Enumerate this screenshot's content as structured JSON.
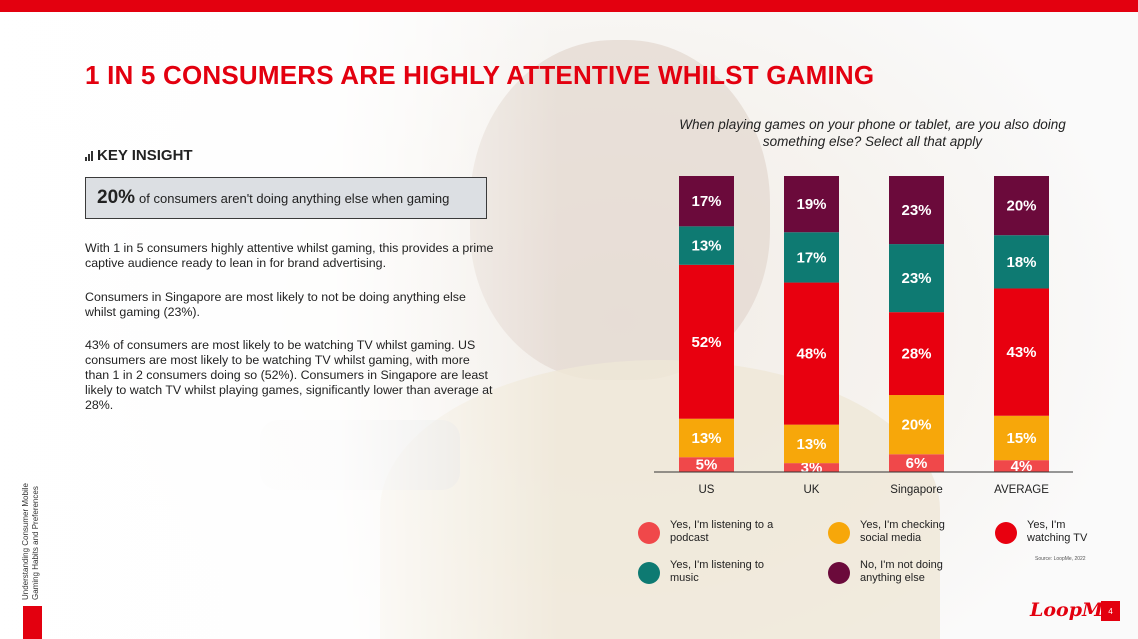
{
  "header": {
    "title": "1 IN 5 CONSUMERS ARE HIGHLY ATTENTIVE WHILST GAMING"
  },
  "key_insight": {
    "label": "KEY INSIGHT",
    "highlight_value": "20%",
    "highlight_text": "of consumers aren't doing anything else when gaming"
  },
  "paragraphs": [
    "With 1 in 5 consumers highly attentive whilst gaming, this provides a prime captive audience ready to lean in for brand advertising.",
    "Consumers in Singapore are most likely to not be doing anything else whilst gaming (23%).",
    "43% of consumers are most likely to be watching TV whilst gaming. US consumers are most likely to be watching TV whilst gaming, with more than 1 in 2 consumers doing so (52%). Consumers in Singapore are least likely to watch TV whilst playing games, significantly lower than average at 28%."
  ],
  "chart_data": {
    "type": "bar",
    "stacked": true,
    "title": "When playing games on your phone or tablet, are you also doing something else? Select all that apply",
    "categories": [
      "US",
      "UK",
      "Singapore",
      "AVERAGE"
    ],
    "series": [
      {
        "name": "Yes, I'm listening to a podcast",
        "color": "#f0484a",
        "values": [
          5,
          3,
          6,
          4
        ]
      },
      {
        "name": "Yes, I'm checking social media",
        "color": "#f7a70a",
        "values": [
          13,
          13,
          20,
          15
        ]
      },
      {
        "name": "Yes, I'm watching TV",
        "color": "#e8000f",
        "values": [
          52,
          48,
          28,
          43
        ]
      },
      {
        "name": "Yes, I'm listening to music",
        "color": "#0e7a72",
        "values": [
          13,
          17,
          23,
          18
        ]
      },
      {
        "name": "No, I'm not doing anything else",
        "color": "#6b0a3b",
        "values": [
          17,
          19,
          23,
          20
        ]
      }
    ],
    "value_suffix": "%",
    "legend_position": "bottom"
  },
  "legend": {
    "items": [
      {
        "label": "Yes, I'm listening to a podcast",
        "color": "#f0484a"
      },
      {
        "label": "Yes, I'm checking social media",
        "color": "#f7a70a"
      },
      {
        "label": "Yes, I'm watching TV",
        "color": "#e8000f"
      },
      {
        "label": "Yes, I'm listening to music",
        "color": "#0e7a72"
      },
      {
        "label": "No, I'm not doing anything else",
        "color": "#6b0a3b"
      }
    ]
  },
  "footer": {
    "source": "Source: LoopMe, 2022",
    "side_label_line1": "Understanding Consumer Mobile",
    "side_label_line2": "Gaming Habits and Preferences",
    "brand": "LoopMe",
    "page_number": "4"
  },
  "colors": {
    "brand_red": "#e3000f",
    "insight_box_bg": "#dcdfe3"
  }
}
